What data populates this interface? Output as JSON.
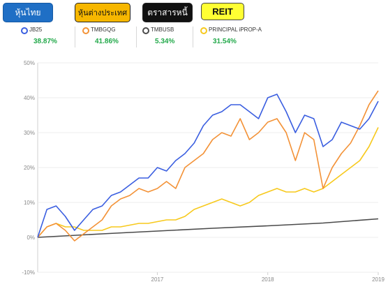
{
  "tabs": [
    {
      "label": "หุ้นไทย"
    },
    {
      "label": "หุ้นต่างประเทศ"
    },
    {
      "label": "ตราสารหนี้"
    },
    {
      "label": "REIT"
    }
  ],
  "legend": [
    {
      "name": "JB25",
      "return": "38.87%",
      "color": "#3a5ee0"
    },
    {
      "name": "TMBGQG",
      "return": "41.86%",
      "color": "#f39237"
    },
    {
      "name": "TMBUSB",
      "return": "5.34%",
      "color": "#4a4a4a"
    },
    {
      "name": "PRINCIPAL iPROP-A",
      "return": "31.54%",
      "color": "#f7c91c"
    }
  ],
  "return_color": "#22a94a",
  "chart_data": {
    "type": "line",
    "x_ticks": [
      "2017",
      "2018",
      "2019"
    ],
    "y_ticks": [
      "50%",
      "40%",
      "30%",
      "20%",
      "10%",
      "0%",
      "-10%"
    ],
    "ylim": [
      -10,
      50
    ],
    "xlim": [
      "2016-06",
      "2019-07"
    ],
    "series": [
      {
        "name": "JB25",
        "color": "#3a5ee0",
        "x": [
          "2016-06",
          "2016-07",
          "2016-08",
          "2016-09",
          "2016-10",
          "2016-11",
          "2016-12",
          "2017-01",
          "2017-02",
          "2017-03",
          "2017-04",
          "2017-05",
          "2017-06",
          "2017-07",
          "2017-08",
          "2017-09",
          "2017-10",
          "2017-11",
          "2017-12",
          "2018-01",
          "2018-02",
          "2018-03",
          "2018-04",
          "2018-05",
          "2018-06",
          "2018-07",
          "2018-08",
          "2018-09",
          "2018-10",
          "2018-11",
          "2018-12",
          "2019-01",
          "2019-02",
          "2019-03",
          "2019-04",
          "2019-05",
          "2019-06",
          "2019-07"
        ],
        "y": [
          0,
          8,
          9,
          6,
          2,
          5,
          8,
          9,
          12,
          13,
          15,
          17,
          17,
          20,
          19,
          22,
          24,
          27,
          32,
          35,
          36,
          38,
          38,
          36,
          34,
          40,
          41,
          36,
          30,
          35,
          34,
          26,
          28,
          33,
          32,
          31,
          34,
          39
        ]
      },
      {
        "name": "TMBGQG",
        "color": "#f39237",
        "x": [
          "2016-06",
          "2016-07",
          "2016-08",
          "2016-09",
          "2016-10",
          "2016-11",
          "2016-12",
          "2017-01",
          "2017-02",
          "2017-03",
          "2017-04",
          "2017-05",
          "2017-06",
          "2017-07",
          "2017-08",
          "2017-09",
          "2017-10",
          "2017-11",
          "2017-12",
          "2018-01",
          "2018-02",
          "2018-03",
          "2018-04",
          "2018-05",
          "2018-06",
          "2018-07",
          "2018-08",
          "2018-09",
          "2018-10",
          "2018-11",
          "2018-12",
          "2019-01",
          "2019-02",
          "2019-03",
          "2019-04",
          "2019-05",
          "2019-06",
          "2019-07"
        ],
        "y": [
          0,
          3,
          4,
          2,
          -1,
          1,
          3,
          5,
          9,
          11,
          12,
          14,
          13,
          14,
          16,
          14,
          20,
          22,
          24,
          28,
          30,
          29,
          34,
          28,
          30,
          33,
          34,
          30,
          22,
          30,
          28,
          14,
          20,
          24,
          27,
          32,
          38,
          42
        ]
      },
      {
        "name": "TMBUSB",
        "color": "#4a4a4a",
        "x": [
          "2016-06",
          "2017-01",
          "2017-07",
          "2018-01",
          "2018-07",
          "2019-01",
          "2019-07"
        ],
        "y": [
          0,
          1,
          1.8,
          2.6,
          3.3,
          4.1,
          5.3
        ]
      },
      {
        "name": "PRINCIPAL iPROP-A",
        "color": "#f7c91c",
        "x": [
          "2016-06",
          "2016-07",
          "2016-08",
          "2016-09",
          "2016-10",
          "2016-11",
          "2016-12",
          "2017-01",
          "2017-02",
          "2017-03",
          "2017-04",
          "2017-05",
          "2017-06",
          "2017-07",
          "2017-08",
          "2017-09",
          "2017-10",
          "2017-11",
          "2017-12",
          "2018-01",
          "2018-02",
          "2018-03",
          "2018-04",
          "2018-05",
          "2018-06",
          "2018-07",
          "2018-08",
          "2018-09",
          "2018-10",
          "2018-11",
          "2018-12",
          "2019-01",
          "2019-02",
          "2019-03",
          "2019-04",
          "2019-05",
          "2019-06",
          "2019-07"
        ],
        "y": [
          0,
          3,
          4,
          3,
          3,
          2,
          2,
          2,
          3,
          3,
          3.5,
          4,
          4,
          4.5,
          5,
          5,
          6,
          8,
          9,
          10,
          11,
          10,
          9,
          10,
          12,
          13,
          14,
          13,
          13,
          14,
          13,
          14,
          16,
          18,
          20,
          22,
          26,
          31.5
        ]
      }
    ]
  }
}
